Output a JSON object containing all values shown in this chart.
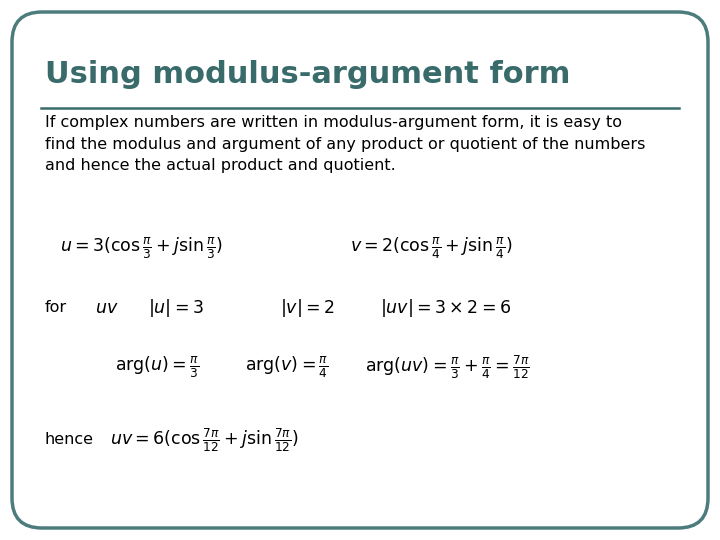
{
  "background_color": "#ffffff",
  "border_color": "#4d7c7c",
  "title": "Using modulus-argument form",
  "title_color": "#3a6b6b",
  "title_fontsize": 22,
  "line_color": "#3a6b6b",
  "body_text": "If complex numbers are written in modulus-argument form, it is easy to\nfind the modulus and argument of any product or quotient of the numbers\nand hence the actual product and quotient.",
  "body_fontsize": 11.5,
  "eq1": "$u = 3(\\cos\\frac{\\pi}{3} + j\\sin\\frac{\\pi}{3})$",
  "eq2": "$v = 2(\\cos\\frac{\\pi}{4} + j\\sin\\frac{\\pi}{4})$",
  "for_label": "for",
  "for_uv_label": "$uv$",
  "mod_u": "$|u| = 3$",
  "mod_v": "$|v| = 2$",
  "mod_uv": "$|uv| = 3 \\times 2 = 6$",
  "arg_u": "$\\mathrm{arg}(u) = \\frac{\\pi}{3}$",
  "arg_v": "$\\mathrm{arg}(v) = \\frac{\\pi}{4}$",
  "arg_uv": "$\\mathrm{arg}(uv) = \\frac{\\pi}{3} + \\frac{\\pi}{4} = \\frac{7\\pi}{12}$",
  "hence_label": "hence",
  "hence_eq": "$uv = 6(\\cos\\frac{7\\pi}{12} + j\\sin\\frac{7\\pi}{12})$",
  "fig_width": 7.2,
  "fig_height": 5.4,
  "dpi": 100
}
